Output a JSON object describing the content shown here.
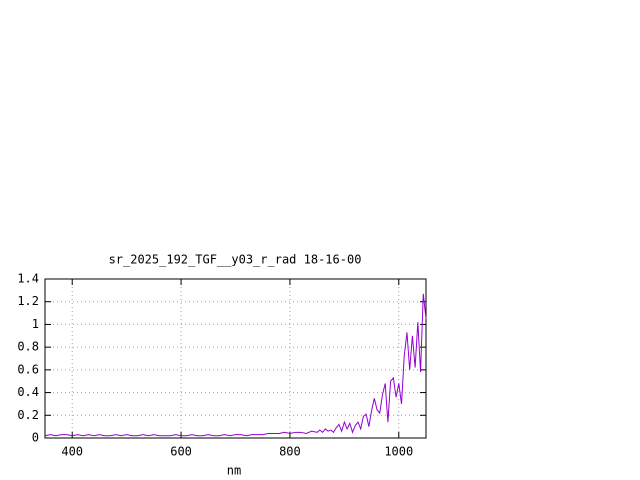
{
  "chart_data": {
    "type": "line",
    "title": "sr_2025_192_TGF__y03_r_rad 18-16-00",
    "x_label": "nm",
    "x": [
      350,
      360,
      370,
      380,
      390,
      400,
      410,
      420,
      430,
      440,
      450,
      460,
      470,
      480,
      490,
      500,
      510,
      520,
      530,
      540,
      550,
      560,
      570,
      580,
      590,
      600,
      610,
      620,
      630,
      640,
      650,
      660,
      670,
      680,
      690,
      700,
      710,
      720,
      730,
      740,
      750,
      760,
      770,
      780,
      790,
      800,
      810,
      820,
      830,
      840,
      850,
      855,
      860,
      865,
      870,
      875,
      880,
      885,
      890,
      895,
      900,
      905,
      910,
      915,
      920,
      925,
      930,
      935,
      940,
      945,
      950,
      955,
      960,
      965,
      970,
      975,
      980,
      985,
      990,
      995,
      1000,
      1005,
      1010,
      1015,
      1020,
      1025,
      1030,
      1035,
      1040,
      1045,
      1050
    ],
    "values": [
      0.02,
      0.03,
      0.02,
      0.03,
      0.03,
      0.02,
      0.03,
      0.02,
      0.03,
      0.02,
      0.03,
      0.02,
      0.02,
      0.03,
      0.02,
      0.03,
      0.02,
      0.02,
      0.03,
      0.02,
      0.03,
      0.02,
      0.02,
      0.02,
      0.03,
      0.02,
      0.02,
      0.03,
      0.02,
      0.02,
      0.03,
      0.02,
      0.02,
      0.03,
      0.02,
      0.03,
      0.03,
      0.02,
      0.03,
      0.03,
      0.03,
      0.04,
      0.04,
      0.04,
      0.05,
      0.04,
      0.05,
      0.05,
      0.04,
      0.06,
      0.05,
      0.07,
      0.05,
      0.08,
      0.06,
      0.07,
      0.05,
      0.09,
      0.12,
      0.06,
      0.14,
      0.08,
      0.13,
      0.05,
      0.11,
      0.14,
      0.08,
      0.19,
      0.21,
      0.1,
      0.24,
      0.35,
      0.25,
      0.22,
      0.38,
      0.48,
      0.14,
      0.5,
      0.53,
      0.36,
      0.48,
      0.3,
      0.72,
      0.93,
      0.6,
      0.9,
      0.62,
      1.02,
      0.58,
      1.27,
      1.05
    ],
    "color": "#9400d3",
    "xlim": [
      350,
      1050
    ],
    "ylim": [
      0,
      1.4
    ],
    "xticks": [
      400,
      600,
      800,
      1000
    ],
    "yticks": [
      0,
      0.2,
      0.4,
      0.6,
      0.8,
      1,
      1.2,
      1.4
    ],
    "grid": true
  }
}
